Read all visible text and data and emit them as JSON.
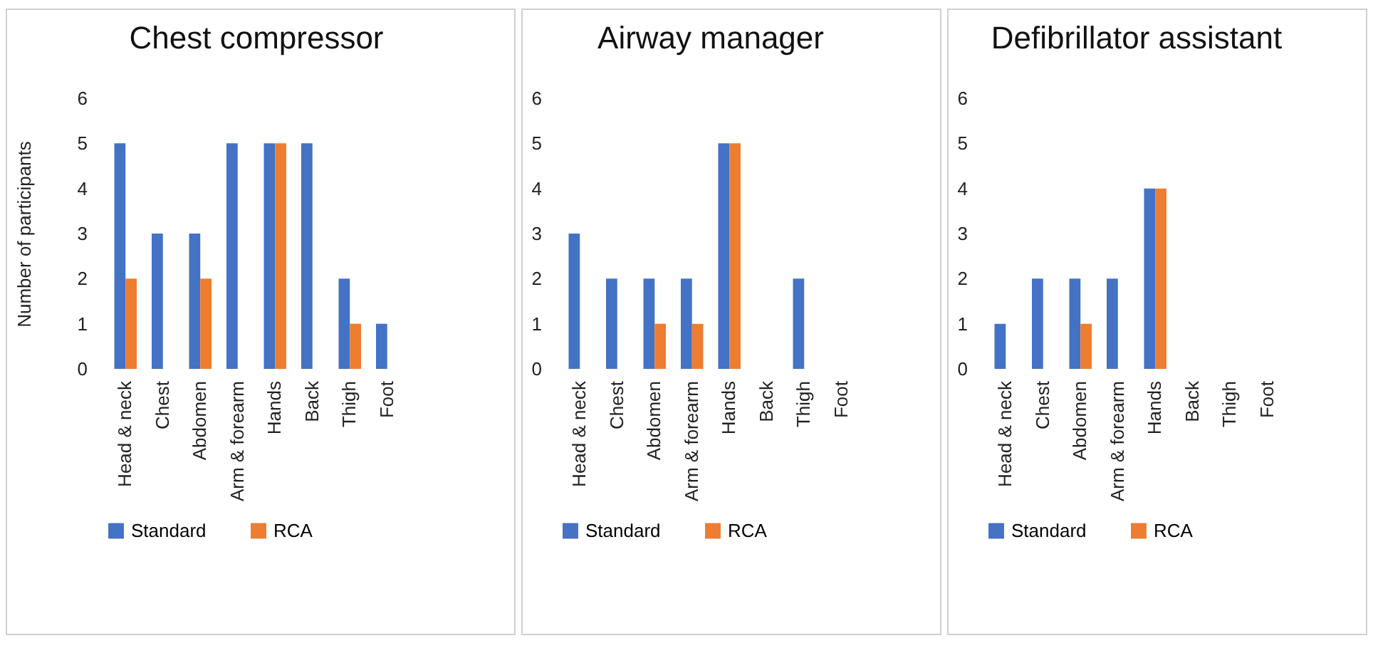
{
  "chart_data": [
    {
      "type": "bar",
      "title": "Chest compressor",
      "ylabel": "Number of participants",
      "categories": [
        "Head & neck",
        "Chest",
        "Abdomen",
        "Arm & forearm",
        "Hands",
        "Back",
        "Thigh",
        "Foot"
      ],
      "series": [
        {
          "name": "Standard",
          "color": "#4472c4",
          "values": [
            5,
            3,
            3,
            5,
            5,
            5,
            2,
            1
          ]
        },
        {
          "name": "RCA",
          "color": "#ed7d31",
          "values": [
            2,
            0,
            2,
            0,
            5,
            0,
            1,
            0
          ]
        }
      ],
      "ylim": [
        0,
        6
      ],
      "yticks": [
        0,
        1,
        2,
        3,
        4,
        5,
        6
      ],
      "grid": false,
      "legend": "bottom"
    },
    {
      "type": "bar",
      "title": "Airway manager",
      "categories": [
        "Head & neck",
        "Chest",
        "Abdomen",
        "Arm & forearm",
        "Hands",
        "Back",
        "Thigh",
        "Foot"
      ],
      "series": [
        {
          "name": "Standard",
          "color": "#4472c4",
          "values": [
            3,
            2,
            2,
            2,
            5,
            0,
            2,
            0
          ]
        },
        {
          "name": "RCA",
          "color": "#ed7d31",
          "values": [
            0,
            0,
            1,
            1,
            5,
            0,
            0,
            0
          ]
        }
      ],
      "ylim": [
        0,
        6
      ],
      "yticks": [
        0,
        1,
        2,
        3,
        4,
        5,
        6
      ],
      "grid": false,
      "legend": "bottom"
    },
    {
      "type": "bar",
      "title": "Defibrillator assistant",
      "categories": [
        "Head & neck",
        "Chest",
        "Abdomen",
        "Arm & forearm",
        "Hands",
        "Back",
        "Thigh",
        "Foot"
      ],
      "series": [
        {
          "name": "Standard",
          "color": "#4472c4",
          "values": [
            1,
            2,
            2,
            2,
            4,
            0,
            0,
            0
          ]
        },
        {
          "name": "RCA",
          "color": "#ed7d31",
          "values": [
            0,
            0,
            1,
            0,
            4,
            0,
            0,
            0
          ]
        }
      ],
      "ylim": [
        0,
        6
      ],
      "yticks": [
        0,
        1,
        2,
        3,
        4,
        5,
        6
      ],
      "grid": false,
      "legend": "bottom"
    }
  ]
}
